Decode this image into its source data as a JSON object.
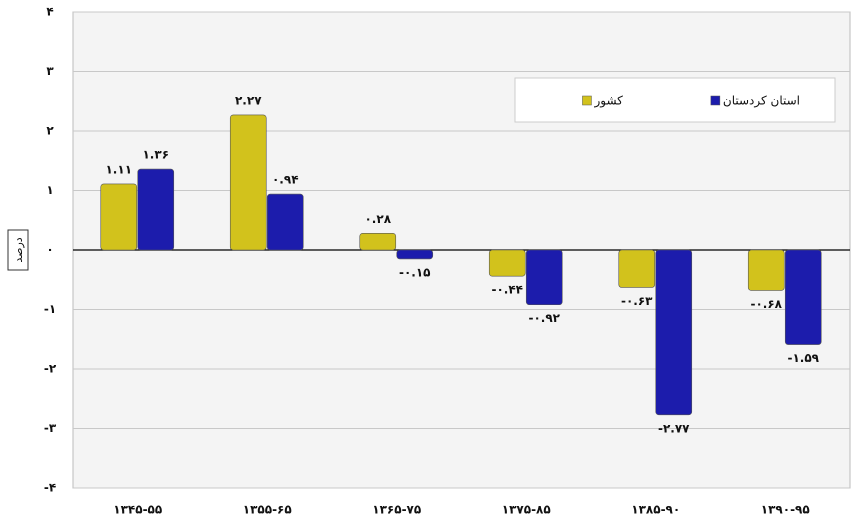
{
  "chart_data": {
    "type": "bar",
    "y_label": "درصد",
    "categories": [
      "۱۳۴۵-۵۵",
      "۱۳۵۵-۶۵",
      "۱۳۶۵-۷۵",
      "۱۳۷۵-۸۵",
      "۱۳۸۵-۹۰",
      "۱۳۹۰-۹۵"
    ],
    "series": [
      {
        "name": "کشور",
        "color": "#d2c21c",
        "values": [
          1.11,
          2.27,
          0.28,
          -0.44,
          -0.63,
          -0.68
        ],
        "value_labels": [
          "۱.۱۱",
          "۲.۲۷",
          "۰.۲۸",
          "-۰.۴۴",
          "-۰.۶۳",
          "-۰.۶۸"
        ]
      },
      {
        "name": "استان کردستان",
        "color": "#1c1cac",
        "values": [
          1.36,
          0.94,
          -0.15,
          -0.92,
          -2.77,
          -1.59
        ],
        "value_labels": [
          "۱.۳۶",
          "۰.۹۴",
          "-۰.۱۵",
          "-۰.۹۲",
          "-۲.۷۷",
          "-۱.۵۹"
        ]
      }
    ],
    "ylim": [
      -4,
      4
    ],
    "yticks": [
      {
        "value": -4,
        "label": "-۴"
      },
      {
        "value": -3,
        "label": "-۳"
      },
      {
        "value": -2,
        "label": "-۲"
      },
      {
        "value": -1,
        "label": "-۱"
      },
      {
        "value": 0,
        "label": "۰"
      },
      {
        "value": 1,
        "label": "۱"
      },
      {
        "value": 2,
        "label": "۲"
      },
      {
        "value": 3,
        "label": "۳"
      },
      {
        "value": 4,
        "label": "۴"
      }
    ],
    "grid": true,
    "legend": "upper right"
  }
}
